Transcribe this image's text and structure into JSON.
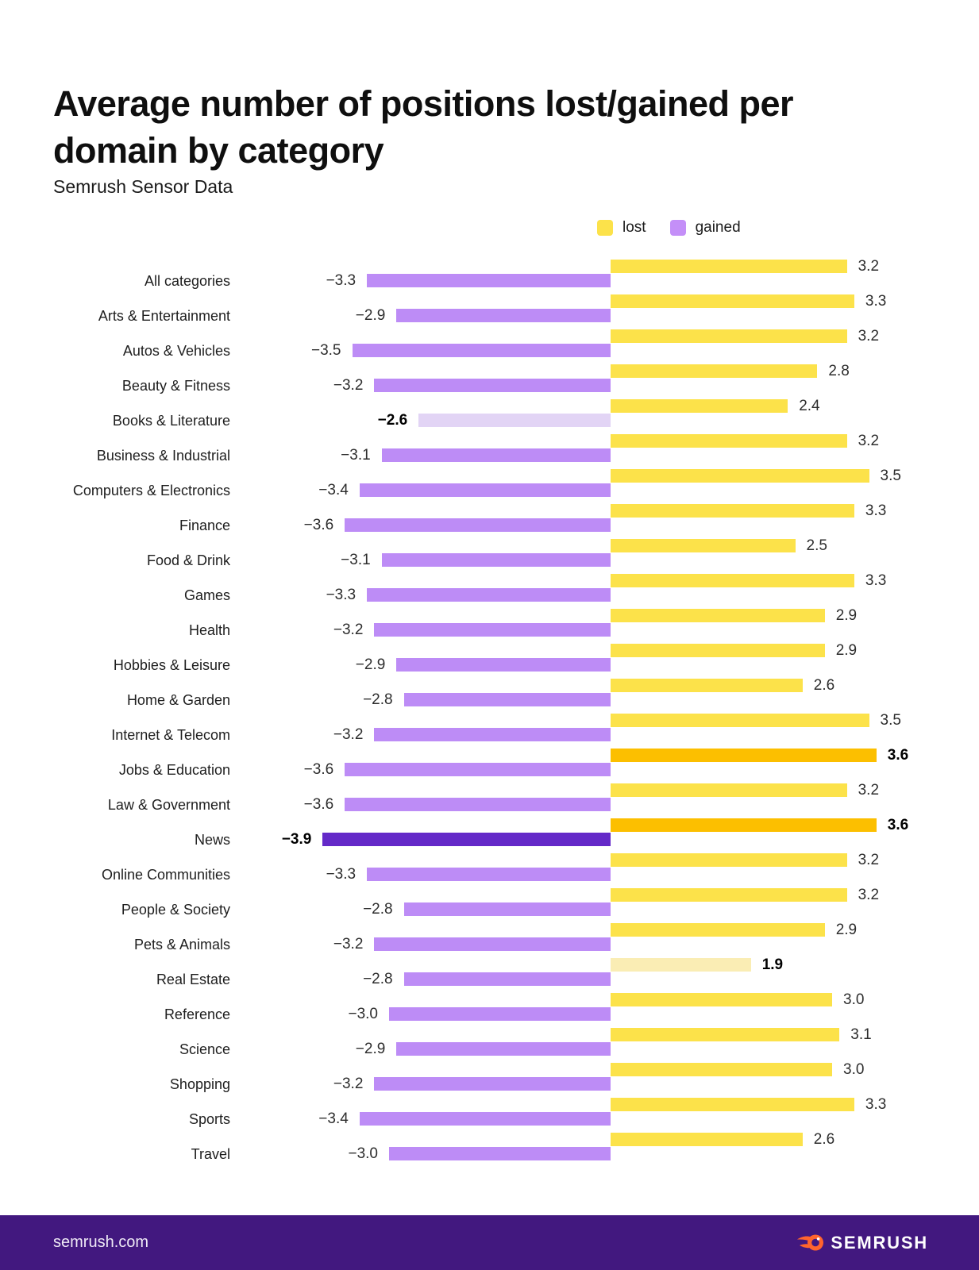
{
  "header": {
    "title": "Average number of positions lost/gained per domain by category",
    "subtitle": "Semrush Sensor Data"
  },
  "legend": {
    "lost_label": "lost",
    "gained_label": "gained",
    "lost_swatch_color": "#FCE24A",
    "gained_swatch_color": "#C48FF8"
  },
  "chart_data": {
    "type": "bar",
    "orientation": "horizontal-diverging",
    "title": "Average number of positions lost/gained per domain by category",
    "subtitle": "Semrush Sensor Data",
    "xlim": [
      -3.9,
      3.6
    ],
    "grid": false,
    "legend_position": "top-right",
    "categories": [
      "All categories",
      "Arts & Entertainment",
      "Autos & Vehicles",
      "Beauty & Fitness",
      "Books & Literature",
      "Business & Industrial",
      "Computers & Electronics",
      "Finance",
      "Food & Drink",
      "Games",
      "Health",
      "Hobbies & Leisure",
      "Home & Garden",
      "Internet & Telecom",
      "Jobs & Education",
      "Law & Government",
      "News",
      "Online Communities",
      "People & Society",
      "Pets & Animals",
      "Real Estate",
      "Reference",
      "Science",
      "Shopping",
      "Sports",
      "Travel"
    ],
    "series": [
      {
        "name": "lost",
        "side": "right",
        "color": "#FCE24A",
        "highlight_color": "#FCBF00",
        "muted_color": "#FAEDB4",
        "values": [
          3.2,
          3.3,
          3.2,
          2.8,
          2.4,
          3.2,
          3.5,
          3.3,
          2.5,
          3.3,
          2.9,
          2.9,
          2.6,
          3.5,
          3.6,
          3.2,
          3.6,
          3.2,
          3.2,
          2.9,
          1.9,
          3.0,
          3.1,
          3.0,
          3.3,
          2.6
        ]
      },
      {
        "name": "gained",
        "side": "left",
        "color": "#BD8CF6",
        "highlight_color": "#6429C8",
        "muted_color": "#E2D4F5",
        "values": [
          -3.3,
          -2.9,
          -3.5,
          -3.2,
          -2.6,
          -3.1,
          -3.4,
          -3.6,
          -3.1,
          -3.3,
          -3.2,
          -2.9,
          -2.8,
          -3.2,
          -3.6,
          -3.6,
          -3.9,
          -3.3,
          -2.8,
          -3.2,
          -2.8,
          -3.0,
          -2.9,
          -3.2,
          -3.4,
          -3.0
        ]
      }
    ],
    "highlights": {
      "lost_max_indices": [
        14,
        16
      ],
      "lost_min_indices": [
        20
      ],
      "gained_max_indices": [
        16
      ],
      "gained_min_indices": [
        4
      ]
    },
    "value_format": "one-decimal"
  },
  "footer": {
    "url": "semrush.com",
    "brand": "SEMRUSH",
    "background_color": "#42187F",
    "flame_color": "#FF642D"
  }
}
